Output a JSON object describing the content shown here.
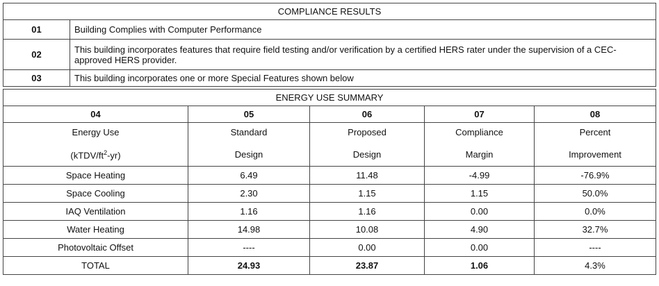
{
  "compliance": {
    "title": "COMPLIANCE RESULTS",
    "items": [
      {
        "number": "01",
        "text": "Building Complies with Computer Performance"
      },
      {
        "number": "02",
        "text": "This building incorporates features that require field testing and/or verification by a certified HERS rater under the supervision of a CEC-approved HERS provider."
      },
      {
        "number": "03",
        "text": "This building incorporates one or more Special Features shown below"
      }
    ]
  },
  "energy_use_summary": {
    "title": "ENERGY USE SUMMARY",
    "column_numbers": [
      "04",
      "05",
      "06",
      "07",
      "08"
    ],
    "column_headers": [
      {
        "top": "Energy Use",
        "bottom": {
          "text": "(kTDV/ft",
          "sup": "2",
          "tail": "-yr)"
        }
      },
      {
        "top": "Standard",
        "bottom": "Design"
      },
      {
        "top": "Proposed",
        "bottom": "Design"
      },
      {
        "top": "Compliance",
        "bottom": "Margin"
      },
      {
        "top": "Percent",
        "bottom": "Improvement"
      }
    ],
    "rows": [
      [
        "Space Heating",
        "6.49",
        "11.48",
        "-4.99",
        "-76.9%"
      ],
      [
        "Space Cooling",
        "2.30",
        "1.15",
        "1.15",
        "50.0%"
      ],
      [
        "IAQ Ventilation",
        "1.16",
        "1.16",
        "0.00",
        "0.0%"
      ],
      [
        "Water Heating",
        "14.98",
        "10.08",
        "4.90",
        "32.7%"
      ],
      [
        "Photovoltaic Offset",
        "----",
        "0.00",
        "0.00",
        "----"
      ],
      [
        "TOTAL",
        "24.93",
        "23.87",
        "1.06",
        "4.3%"
      ]
    ]
  }
}
